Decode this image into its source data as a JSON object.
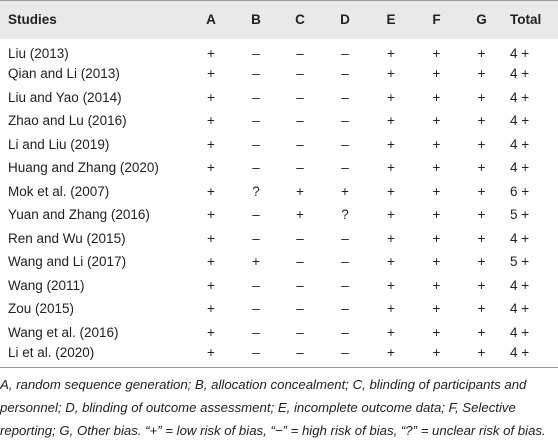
{
  "table": {
    "header": [
      "Studies",
      "A",
      "B",
      "C",
      "D",
      "E",
      "F",
      "G",
      "Total"
    ],
    "rows": [
      [
        "Liu (2013)",
        "+",
        "–",
        "–",
        "–",
        "+",
        "+",
        "+",
        "4 +"
      ],
      [
        "Qian and Li (2013)",
        "+",
        "–",
        "–",
        "–",
        "+",
        "+",
        "+",
        "4 +"
      ],
      [
        "Liu and Yao (2014)",
        "+",
        "–",
        "–",
        "–",
        "+",
        "+",
        "+",
        "4 +"
      ],
      [
        "Zhao and Lu (2016)",
        "+",
        "–",
        "–",
        "–",
        "+",
        "+",
        "+",
        "4 +"
      ],
      [
        "Li and Liu (2019)",
        "+",
        "–",
        "–",
        "–",
        "+",
        "+",
        "+",
        "4 +"
      ],
      [
        "Huang and Zhang (2020)",
        "+",
        "–",
        "–",
        "–",
        "+",
        "+",
        "+",
        "4 +"
      ],
      [
        "Mok et al. (2007)",
        "+",
        "?",
        "+",
        "+",
        "+",
        "+",
        "+",
        "6 +"
      ],
      [
        "Yuan and Zhang (2016)",
        "+",
        "–",
        "+",
        "?",
        "+",
        "+",
        "+",
        "5 +"
      ],
      [
        "Ren and Wu (2015)",
        "+",
        "–",
        "–",
        "–",
        "+",
        "+",
        "+",
        "4 +"
      ],
      [
        "Wang and Li (2017)",
        "+",
        "+",
        "–",
        "–",
        "+",
        "+",
        "+",
        "5 +"
      ],
      [
        "Wang (2011)",
        "+",
        "–",
        "–",
        "–",
        "+",
        "+",
        "+",
        "4 +"
      ],
      [
        "Zou (2015)",
        "+",
        "–",
        "–",
        "–",
        "+",
        "+",
        "+",
        "4 +"
      ],
      [
        "Wang et al. (2016)",
        "+",
        "–",
        "–",
        "–",
        "+",
        "+",
        "+",
        "4 +"
      ],
      [
        "Li et al. (2020)",
        "+",
        "–",
        "–",
        "–",
        "+",
        "+",
        "+",
        "4 +"
      ]
    ]
  },
  "footnote": "A, random sequence generation; B, allocation concealment; C, blinding of participants and personnel; D, blinding of outcome assessment; E, incomplete outcome data; F, Selective reporting; G, Other bias. “+” = low risk of bias, “−” = high risk of bias, “?” = unclear risk of bias."
}
